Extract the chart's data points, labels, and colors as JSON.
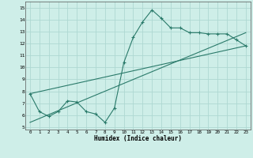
{
  "xlabel": "Humidex (Indice chaleur)",
  "background_color": "#ceeee8",
  "grid_color": "#aed8d2",
  "line_color": "#2a7a6a",
  "xlim": [
    -0.5,
    23.5
  ],
  "ylim": [
    4.8,
    15.5
  ],
  "xticks": [
    0,
    1,
    2,
    3,
    4,
    5,
    6,
    7,
    8,
    9,
    10,
    11,
    12,
    13,
    14,
    15,
    16,
    17,
    18,
    19,
    20,
    21,
    22,
    23
  ],
  "yticks": [
    5,
    6,
    7,
    8,
    9,
    10,
    11,
    12,
    13,
    14,
    15
  ],
  "series1_x": [
    0,
    1,
    2,
    3,
    4,
    5,
    6,
    7,
    8,
    9,
    10,
    11,
    12,
    13,
    14,
    15,
    16,
    17,
    18,
    19,
    20,
    21,
    22,
    23
  ],
  "series1_y": [
    7.8,
    6.3,
    5.9,
    6.3,
    7.2,
    7.1,
    6.3,
    6.1,
    5.4,
    6.6,
    10.4,
    12.5,
    13.8,
    14.8,
    14.1,
    13.3,
    13.3,
    12.9,
    12.9,
    12.8,
    12.8,
    12.8,
    12.3,
    11.8
  ],
  "series2_x": [
    0,
    23
  ],
  "series2_y": [
    7.8,
    11.8
  ],
  "series3_x": [
    0,
    23
  ],
  "series3_y": [
    5.4,
    12.9
  ]
}
